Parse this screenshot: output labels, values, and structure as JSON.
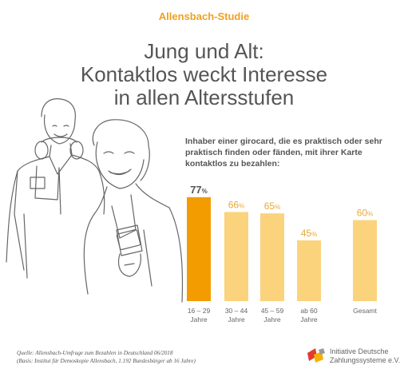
{
  "header": {
    "kicker": "Allensbach-Studie",
    "title_lines": [
      "Jung und Alt:",
      "Kontaktlos weckt Interesse",
      "in allen Altersstufen"
    ]
  },
  "chart_data": {
    "type": "bar",
    "title": "Inhaber einer girocard, die es praktisch oder sehr praktisch finden oder fänden, mit ihrer Karte kontaktlos zu bezahlen:",
    "categories": [
      [
        "16 – 29",
        "Jahre"
      ],
      [
        "30 – 44",
        "Jahre"
      ],
      [
        "45 – 59",
        "Jahre"
      ],
      [
        "ab 60",
        "Jahre"
      ],
      [
        "Gesamt"
      ]
    ],
    "values": [
      77,
      66,
      65,
      45,
      60
    ],
    "unit": "%",
    "ylim": [
      0,
      100
    ],
    "grid": false,
    "legend": "none",
    "colors": {
      "highlight": "#f39c00",
      "bar": "#fbd37c",
      "highlight_label": "#555555",
      "label": "#e8a93a"
    }
  },
  "footer": {
    "source_lines": [
      "Quelle: Allensbach-Umfrage zum Bezahlen in Deutschland 06/2018",
      "(Basis: Institut für Demoskopie Allensbach, 1.192 Bundesbürger ab 16 Jahre)"
    ],
    "logo_lines": [
      "Initiative Deutsche",
      "Zahlungssysteme e.V."
    ]
  }
}
